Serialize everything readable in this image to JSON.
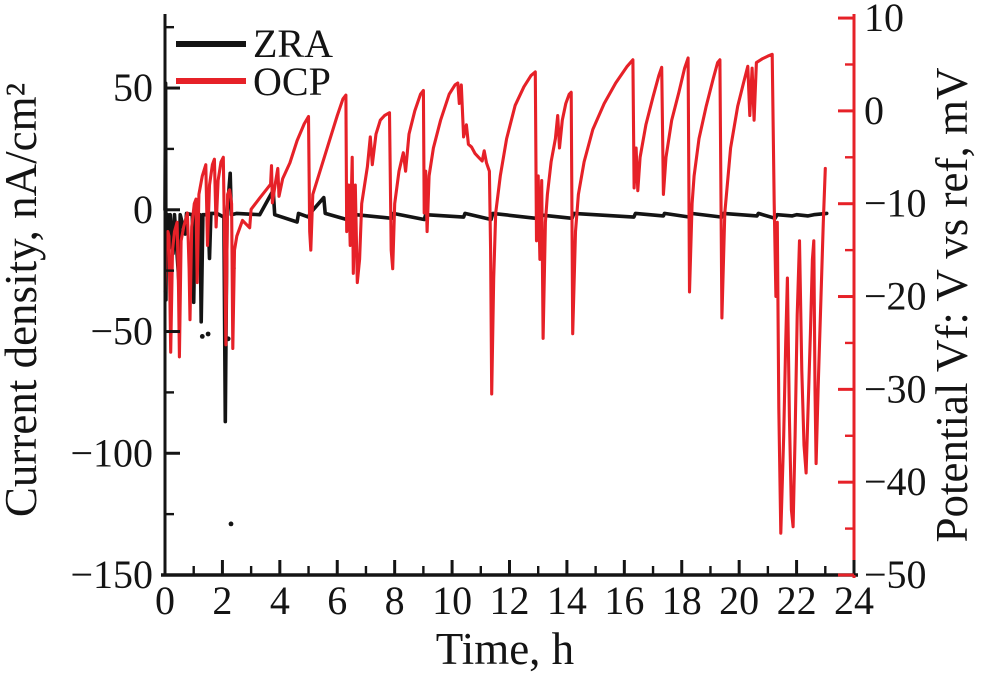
{
  "figure": {
    "background": "#ffffff",
    "description": "Dual-axis galvanic corrosion monitoring plot: ZRA current density (black, left axis) and OCP potential (red, right axis) versus time"
  },
  "colors": {
    "zra": "#141414",
    "ocp": "#e62128"
  },
  "chart_data": {
    "type": "line",
    "title": "",
    "xlabel": "Time, h",
    "x_range": [
      0,
      24
    ],
    "x_major_ticks": [
      0,
      2,
      4,
      6,
      8,
      10,
      12,
      14,
      16,
      18,
      20,
      22,
      24
    ],
    "x_tick_labels": [
      "0",
      "2",
      "4",
      "6",
      "8",
      "10",
      "12",
      "14",
      "16",
      "18",
      "20",
      "22",
      "24"
    ],
    "x_minor_ticks": [
      1,
      3,
      5,
      7,
      9,
      11,
      13,
      15,
      17,
      19,
      21,
      23
    ],
    "grid": false,
    "legend": {
      "position": "top-left-inside",
      "items": [
        {
          "label": "ZRA",
          "color": "#141414"
        },
        {
          "label": "OCP",
          "color": "#e62128"
        }
      ]
    },
    "axes": {
      "left": {
        "label": "Current density, nA/cm²",
        "color": "#141414",
        "range": [
          -150,
          80
        ],
        "major_ticks": [
          50,
          0,
          -50,
          -100,
          -150
        ],
        "tick_labels": [
          "50",
          "0",
          "−50",
          "−100",
          "−150"
        ],
        "minor_ticks": [
          75,
          25,
          -25,
          -75,
          -125
        ]
      },
      "right": {
        "label": "Potential Vf: V vs ref, mV",
        "color": "#e62128",
        "range": [
          -50,
          10.33
        ],
        "major_ticks": [
          10,
          0,
          -10,
          -20,
          -30,
          -40,
          -50
        ],
        "tick_labels": [
          "10",
          "0",
          "−10",
          "−20",
          "−30",
          "−40",
          "−50"
        ],
        "minor_ticks": [
          5,
          -5,
          -15,
          -25,
          -35,
          -45
        ]
      }
    },
    "series": [
      {
        "name": "ZRA",
        "axis": "left",
        "unit": "nA/cm²",
        "color": "#141414",
        "stroke_width": 3.6,
        "points": [
          [
            0,
            0
          ],
          [
            0.02,
            52
          ],
          [
            0.03,
            -37
          ],
          [
            0.05,
            -4
          ],
          [
            0.1,
            -2
          ],
          [
            0.14,
            -16
          ],
          [
            0.18,
            -2
          ],
          [
            0.28,
            -18
          ],
          [
            0.33,
            -2
          ],
          [
            0.48,
            -29
          ],
          [
            0.53,
            -2
          ],
          [
            0.7,
            -10
          ],
          [
            0.75,
            -1.5
          ],
          [
            0.95,
            -2
          ],
          [
            1,
            -38
          ],
          [
            1.05,
            -2
          ],
          [
            1.22,
            -2
          ],
          [
            1.26,
            -46
          ],
          [
            1.32,
            -2
          ],
          [
            1.5,
            -2
          ],
          [
            1.55,
            -20
          ],
          [
            1.6,
            -1.5
          ],
          [
            1.8,
            -1.5
          ],
          [
            2.05,
            -3
          ],
          [
            2.1,
            -87
          ],
          [
            2.16,
            -2
          ],
          [
            2.27,
            15
          ],
          [
            2.31,
            -2
          ],
          [
            2.5,
            -1.5
          ],
          [
            3.3,
            -2
          ],
          [
            3.77,
            8
          ],
          [
            3.82,
            -2
          ],
          [
            4.6,
            -5
          ],
          [
            4.65,
            -1.5
          ],
          [
            5,
            -3
          ],
          [
            5.05,
            -1.5
          ],
          [
            5.53,
            5
          ],
          [
            5.58,
            -1.5
          ],
          [
            6.33,
            -4
          ],
          [
            6.38,
            -1.5
          ],
          [
            6.6,
            -4.5
          ],
          [
            6.65,
            -2
          ],
          [
            7.9,
            -3.5
          ],
          [
            7.95,
            -1.5
          ],
          [
            9.03,
            -4
          ],
          [
            9.08,
            -2
          ],
          [
            10.4,
            -3
          ],
          [
            10.45,
            -1.5
          ],
          [
            11.36,
            -4
          ],
          [
            11.42,
            -1.5
          ],
          [
            12.92,
            -3.5
          ],
          [
            12.98,
            -2
          ],
          [
            14.18,
            -3.5
          ],
          [
            14.24,
            -1.5
          ],
          [
            16.33,
            -3
          ],
          [
            16.39,
            -1.5
          ],
          [
            17.36,
            -2.5
          ],
          [
            17.4,
            -1.5
          ],
          [
            18.28,
            -3
          ],
          [
            18.33,
            -1.5
          ],
          [
            19.4,
            -3
          ],
          [
            19.45,
            -1.5
          ],
          [
            20.62,
            -2.5
          ],
          [
            20.67,
            -1.5
          ],
          [
            21.25,
            -3.5
          ],
          [
            21.32,
            -2
          ],
          [
            21.85,
            -2.5
          ],
          [
            22,
            -2
          ],
          [
            22.4,
            -2.5
          ],
          [
            22.6,
            -2
          ],
          [
            23.05,
            -1.5
          ]
        ],
        "outlier_dots": [
          [
            2.3,
            -129
          ],
          [
            2.2,
            -53
          ],
          [
            1.3,
            -52
          ],
          [
            1.5,
            -51
          ],
          [
            2.38,
            -24
          ]
        ]
      },
      {
        "name": "OCP",
        "axis": "right",
        "unit": "mV",
        "color": "#e62128",
        "stroke_width": 3.1,
        "points": [
          [
            0,
            -19.5
          ],
          [
            0.04,
            -15
          ],
          [
            0.1,
            -13
          ],
          [
            0.14,
            -13.5
          ],
          [
            0.17,
            -20
          ],
          [
            0.2,
            -26
          ],
          [
            0.26,
            -15
          ],
          [
            0.33,
            -13
          ],
          [
            0.42,
            -12
          ],
          [
            0.47,
            -19
          ],
          [
            0.5,
            -26.5
          ],
          [
            0.56,
            -14
          ],
          [
            0.65,
            -12.5
          ],
          [
            0.78,
            -11
          ],
          [
            0.84,
            -17
          ],
          [
            0.87,
            -22.5
          ],
          [
            0.93,
            -12.5
          ],
          [
            1.02,
            -10
          ],
          [
            1.08,
            -9.5
          ],
          [
            1.12,
            -18.5
          ],
          [
            1.18,
            -9
          ],
          [
            1.3,
            -7
          ],
          [
            1.42,
            -5.8
          ],
          [
            1.48,
            -14.5
          ],
          [
            1.55,
            -8
          ],
          [
            1.65,
            -5.8
          ],
          [
            1.72,
            -5.2
          ],
          [
            1.78,
            -12.5
          ],
          [
            1.85,
            -7.5
          ],
          [
            1.95,
            -5.5
          ],
          [
            2.03,
            -5
          ],
          [
            2.08,
            -15
          ],
          [
            2.12,
            -25.2
          ],
          [
            2.18,
            -9
          ],
          [
            2.25,
            -8.5
          ],
          [
            2.32,
            -10
          ],
          [
            2.36,
            -25.6
          ],
          [
            2.42,
            -15
          ],
          [
            2.5,
            -13.5
          ],
          [
            2.7,
            -11.8
          ],
          [
            2.95,
            -12.6
          ],
          [
            3,
            -10.6
          ],
          [
            3.3,
            -9.4
          ],
          [
            3.55,
            -8.4
          ],
          [
            3.68,
            -7.9
          ],
          [
            3.71,
            -5.9
          ],
          [
            3.74,
            -9.9
          ],
          [
            3.85,
            -7.7
          ],
          [
            3.93,
            -6.2
          ],
          [
            3.97,
            -9.2
          ],
          [
            4.1,
            -7.3
          ],
          [
            4.35,
            -5.6
          ],
          [
            4.6,
            -3.2
          ],
          [
            4.85,
            -1.4
          ],
          [
            5,
            -0.6
          ],
          [
            5.04,
            -13
          ],
          [
            5.08,
            -15
          ],
          [
            5.15,
            -9
          ],
          [
            5.4,
            -6.5
          ],
          [
            5.7,
            -3.5
          ],
          [
            6,
            -0.5
          ],
          [
            6.2,
            1.3
          ],
          [
            6.3,
            1.7
          ],
          [
            6.33,
            -13
          ],
          [
            6.4,
            -8
          ],
          [
            6.45,
            -14.5
          ],
          [
            6.52,
            -5
          ],
          [
            6.56,
            -17.5
          ],
          [
            6.63,
            -8
          ],
          [
            6.7,
            -18.5
          ],
          [
            6.78,
            -16
          ],
          [
            6.85,
            -10
          ],
          [
            7.05,
            -6
          ],
          [
            7.15,
            -2.8
          ],
          [
            7.22,
            -5.8
          ],
          [
            7.35,
            -2.5
          ],
          [
            7.5,
            -1
          ],
          [
            7.65,
            -0.5
          ],
          [
            7.82,
            -0.2
          ],
          [
            7.88,
            -15
          ],
          [
            7.93,
            -17
          ],
          [
            8,
            -10
          ],
          [
            8.15,
            -6.5
          ],
          [
            8.3,
            -4.5
          ],
          [
            8.38,
            -6.5
          ],
          [
            8.5,
            -2.5
          ],
          [
            8.7,
            0
          ],
          [
            8.9,
            1.8
          ],
          [
            9,
            2.2
          ],
          [
            9.03,
            -11
          ],
          [
            9.08,
            -6.5
          ],
          [
            9.13,
            -13
          ],
          [
            9.2,
            -7
          ],
          [
            9.35,
            -4
          ],
          [
            9.6,
            -1
          ],
          [
            9.9,
            1.8
          ],
          [
            10.1,
            2.8
          ],
          [
            10.2,
            3
          ],
          [
            10.25,
            0.8
          ],
          [
            10.32,
            2.8
          ],
          [
            10.4,
            -2.8
          ],
          [
            10.5,
            -1.5
          ],
          [
            10.57,
            -3.6
          ],
          [
            10.68,
            -3.9
          ],
          [
            10.8,
            -4.6
          ],
          [
            10.95,
            -5.1
          ],
          [
            11.05,
            -5.4
          ],
          [
            11.12,
            -4.3
          ],
          [
            11.2,
            -5.6
          ],
          [
            11.3,
            -6.5
          ],
          [
            11.34,
            -15
          ],
          [
            11.38,
            -30.5
          ],
          [
            11.45,
            -18
          ],
          [
            11.52,
            -11
          ],
          [
            11.68,
            -7
          ],
          [
            11.9,
            -3
          ],
          [
            12.2,
            0.6
          ],
          [
            12.5,
            2.6
          ],
          [
            12.75,
            3.8
          ],
          [
            12.9,
            4.2
          ],
          [
            12.94,
            -14
          ],
          [
            13,
            -7
          ],
          [
            13.06,
            -16
          ],
          [
            13.12,
            -7.5
          ],
          [
            13.17,
            -24.5
          ],
          [
            13.25,
            -12
          ],
          [
            13.32,
            -9
          ],
          [
            13.45,
            -5.5
          ],
          [
            13.6,
            -3
          ],
          [
            13.68,
            -0.5
          ],
          [
            13.74,
            -4
          ],
          [
            13.84,
            -1
          ],
          [
            13.96,
            0.8
          ],
          [
            14.08,
            1.8
          ],
          [
            14.15,
            2
          ],
          [
            14.2,
            -24
          ],
          [
            14.3,
            -13
          ],
          [
            14.4,
            -9
          ],
          [
            14.6,
            -5.5
          ],
          [
            14.9,
            -2
          ],
          [
            15.3,
            0.8
          ],
          [
            15.7,
            3
          ],
          [
            16.1,
            4.8
          ],
          [
            16.3,
            5.5
          ],
          [
            16.34,
            -8.3
          ],
          [
            16.41,
            -4
          ],
          [
            16.47,
            -8.6
          ],
          [
            16.55,
            -5
          ],
          [
            16.75,
            -1.5
          ],
          [
            17,
            1.5
          ],
          [
            17.2,
            3.8
          ],
          [
            17.3,
            4.7
          ],
          [
            17.36,
            -9
          ],
          [
            17.45,
            -5
          ],
          [
            17.65,
            -1
          ],
          [
            17.9,
            2
          ],
          [
            18.1,
            4.6
          ],
          [
            18.22,
            5.7
          ],
          [
            18.27,
            -19.5
          ],
          [
            18.36,
            -10
          ],
          [
            18.43,
            -7
          ],
          [
            18.6,
            -3
          ],
          [
            18.85,
            0.5
          ],
          [
            19.1,
            3.5
          ],
          [
            19.25,
            5.2
          ],
          [
            19.33,
            5.5
          ],
          [
            19.4,
            -22.3
          ],
          [
            19.5,
            -11
          ],
          [
            19.7,
            -4
          ],
          [
            19.95,
            0.5
          ],
          [
            20.15,
            3
          ],
          [
            20.3,
            4.8
          ],
          [
            20.37,
            -0.5
          ],
          [
            20.45,
            4.6
          ],
          [
            20.52,
            -1
          ],
          [
            20.6,
            5.2
          ],
          [
            20.8,
            5.6
          ],
          [
            21,
            5.9
          ],
          [
            21.15,
            6.1
          ],
          [
            21.22,
            -10
          ],
          [
            21.28,
            -20
          ],
          [
            21.33,
            -12
          ],
          [
            21.38,
            -32
          ],
          [
            21.45,
            -45.5
          ],
          [
            21.55,
            -35
          ],
          [
            21.62,
            -25
          ],
          [
            21.68,
            -18
          ],
          [
            21.75,
            -33
          ],
          [
            21.82,
            -43
          ],
          [
            21.88,
            -44.8
          ],
          [
            21.95,
            -35
          ],
          [
            22.02,
            -22
          ],
          [
            22.1,
            -14
          ],
          [
            22.18,
            -28
          ],
          [
            22.26,
            -36
          ],
          [
            22.33,
            -39
          ],
          [
            22.4,
            -32
          ],
          [
            22.48,
            -24
          ],
          [
            22.55,
            -16
          ],
          [
            22.6,
            -14
          ],
          [
            22.64,
            -30
          ],
          [
            22.68,
            -38
          ],
          [
            22.75,
            -30
          ],
          [
            22.85,
            -20
          ],
          [
            22.93,
            -12
          ],
          [
            23,
            -6.2
          ]
        ]
      }
    ]
  }
}
